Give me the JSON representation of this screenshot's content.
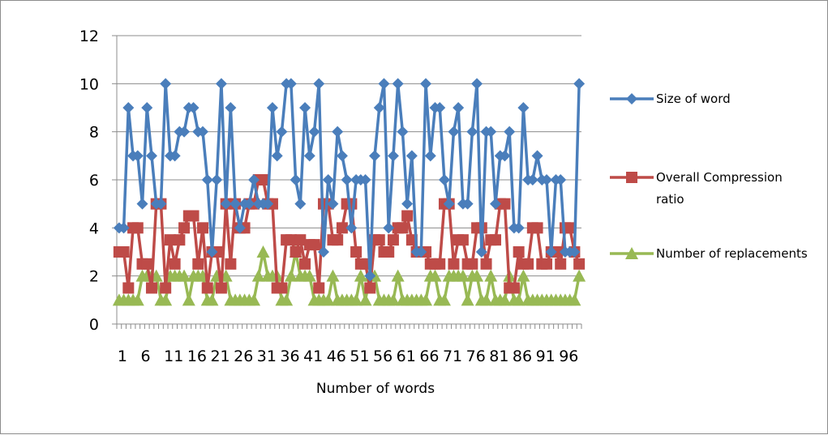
{
  "chart_data": {
    "type": "line",
    "xlabel": "Number of words",
    "ylabel": "",
    "ylim": [
      0,
      12
    ],
    "yticks": [
      0,
      2,
      4,
      6,
      8,
      10,
      12
    ],
    "x": [
      1,
      2,
      3,
      4,
      5,
      6,
      7,
      8,
      9,
      10,
      11,
      12,
      13,
      14,
      15,
      16,
      17,
      18,
      19,
      20,
      21,
      22,
      23,
      24,
      25,
      26,
      27,
      28,
      29,
      30,
      31,
      32,
      33,
      34,
      35,
      36,
      37,
      38,
      39,
      40,
      41,
      42,
      43,
      44,
      45,
      46,
      47,
      48,
      49,
      50,
      51,
      52,
      53,
      54,
      55,
      56,
      57,
      58,
      59,
      60,
      61,
      62,
      63,
      64,
      65,
      66,
      67,
      68,
      69,
      70,
      71,
      72,
      73,
      74,
      75,
      76,
      77,
      78,
      79,
      80,
      81,
      82,
      83,
      84,
      85,
      86,
      87,
      88,
      89,
      90,
      91,
      92,
      93,
      94,
      95,
      96,
      97,
      98,
      99,
      100
    ],
    "xtick_labels": [
      "1",
      "6",
      "11",
      "16",
      "21",
      "26",
      "31",
      "36",
      "41",
      "46",
      "51",
      "56",
      "61",
      "66",
      "71",
      "76",
      "81",
      "86",
      "91",
      "96"
    ],
    "grid": "horizontal",
    "legend_position": "right",
    "series": [
      {
        "name": "Size of word",
        "color": "#4a7ebb",
        "marker": "diamond",
        "values": [
          4,
          4,
          9,
          7,
          7,
          5,
          9,
          7,
          5,
          5,
          10,
          7,
          7,
          8,
          8,
          9,
          9,
          8,
          8,
          6,
          3,
          6,
          10,
          5,
          9,
          5,
          4,
          5,
          5,
          6,
          5,
          5,
          5,
          9,
          7,
          8,
          10,
          10,
          6,
          5,
          9,
          7,
          8,
          10,
          3,
          6,
          5,
          8,
          7,
          6,
          4,
          6,
          6,
          6,
          2,
          7,
          9,
          10,
          4,
          7,
          10,
          8,
          5,
          7,
          3,
          3,
          10,
          7,
          9,
          9,
          6,
          5,
          8,
          9,
          5,
          5,
          8,
          10,
          3,
          8,
          8,
          5,
          7,
          7,
          8,
          4,
          4,
          9,
          6,
          6,
          7,
          6,
          6,
          3,
          6,
          6,
          3,
          3,
          3,
          10
        ]
      },
      {
        "name": "Overall Compression ratio",
        "color": "#be4b48",
        "marker": "square",
        "values": [
          3,
          3,
          1.5,
          4,
          4,
          2.5,
          2.5,
          1.5,
          5,
          5,
          1.5,
          3.5,
          2.5,
          3.5,
          4,
          4.5,
          4.5,
          2.5,
          4,
          1.5,
          3,
          3,
          1.5,
          5,
          2.5,
          5,
          4,
          4,
          5,
          5,
          6,
          6,
          5,
          5,
          1.5,
          1.5,
          3.5,
          3.5,
          3,
          3.5,
          2.5,
          3.3,
          3.3,
          1.5,
          5,
          5,
          3.5,
          3.5,
          4,
          5,
          5,
          3,
          2.5,
          2.5,
          1.5,
          3.5,
          3.5,
          3,
          3,
          3.5,
          4,
          4,
          4.5,
          3.5,
          3,
          3,
          3,
          2.5,
          2.5,
          2.5,
          5,
          5,
          2.5,
          3.5,
          3.5,
          2.5,
          2.5,
          4,
          4,
          2.5,
          3.5,
          3.5,
          5,
          5,
          1.5,
          1.5,
          3,
          2.5,
          2.5,
          4,
          4,
          2.5,
          2.5,
          3,
          3,
          2.5,
          4,
          4,
          3,
          2.5
        ]
      },
      {
        "name": "Number of replacements",
        "color": "#98b954",
        "marker": "triangle",
        "values": [
          1,
          1,
          1,
          1,
          1,
          2,
          2,
          2,
          2,
          1,
          1,
          2,
          2,
          2,
          2,
          1,
          2,
          2,
          2,
          1,
          1,
          2,
          2,
          2,
          1,
          1,
          1,
          1,
          1,
          1,
          2,
          3,
          2,
          2,
          2,
          1,
          1,
          2,
          3,
          2,
          2,
          2,
          1,
          1,
          1,
          1,
          2,
          1,
          1,
          1,
          1,
          1,
          2,
          1,
          2,
          2,
          1,
          1,
          1,
          1,
          2,
          1,
          1,
          1,
          1,
          1,
          1,
          2,
          2,
          1,
          1,
          2,
          2,
          2,
          2,
          1,
          2,
          2,
          1,
          1,
          2,
          1,
          1,
          1,
          2,
          1,
          1,
          2,
          1,
          1,
          1,
          1,
          1,
          1,
          1,
          1,
          1,
          1,
          1,
          2
        ]
      }
    ]
  }
}
